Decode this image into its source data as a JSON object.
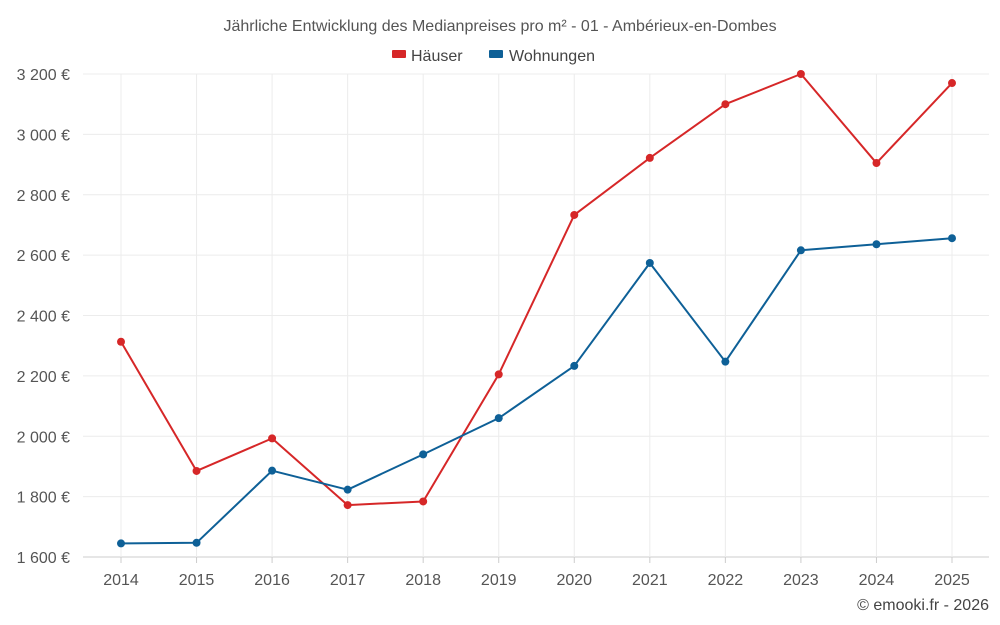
{
  "chart_data": {
    "type": "line",
    "title": "Jährliche Entwicklung des Medianpreises pro m² - 01 - Ambérieux-en-Dombes",
    "x": [
      "2014",
      "2015",
      "2016",
      "2017",
      "2018",
      "2019",
      "2020",
      "2021",
      "2022",
      "2023",
      "2024",
      "2025"
    ],
    "y_ticks": [
      {
        "value": 1600,
        "label": "1 600 €"
      },
      {
        "value": 1800,
        "label": "1 800 €"
      },
      {
        "value": 2000,
        "label": "2 000 €"
      },
      {
        "value": 2200,
        "label": "2 200 €"
      },
      {
        "value": 2400,
        "label": "2 400 €"
      },
      {
        "value": 2600,
        "label": "2 600 €"
      },
      {
        "value": 2800,
        "label": "2 800 €"
      },
      {
        "value": 3000,
        "label": "3 000 €"
      },
      {
        "value": 3200,
        "label": "3 200 €"
      }
    ],
    "ylim": [
      1600,
      3200
    ],
    "grid": true,
    "legend_position": "top-center",
    "series": [
      {
        "name": "Häuser",
        "color": "#d62728",
        "values": [
          2313,
          1885,
          1993,
          1772,
          1784,
          2205,
          2733,
          2922,
          3100,
          3200,
          2905,
          3170
        ]
      },
      {
        "name": "Wohnungen",
        "color": "#0e6097",
        "values": [
          1645,
          1647,
          1886,
          1823,
          1940,
          2060,
          2233,
          2574,
          2247,
          2616,
          2636,
          2656
        ]
      }
    ],
    "credit": "© emooki.fr - 2026"
  }
}
